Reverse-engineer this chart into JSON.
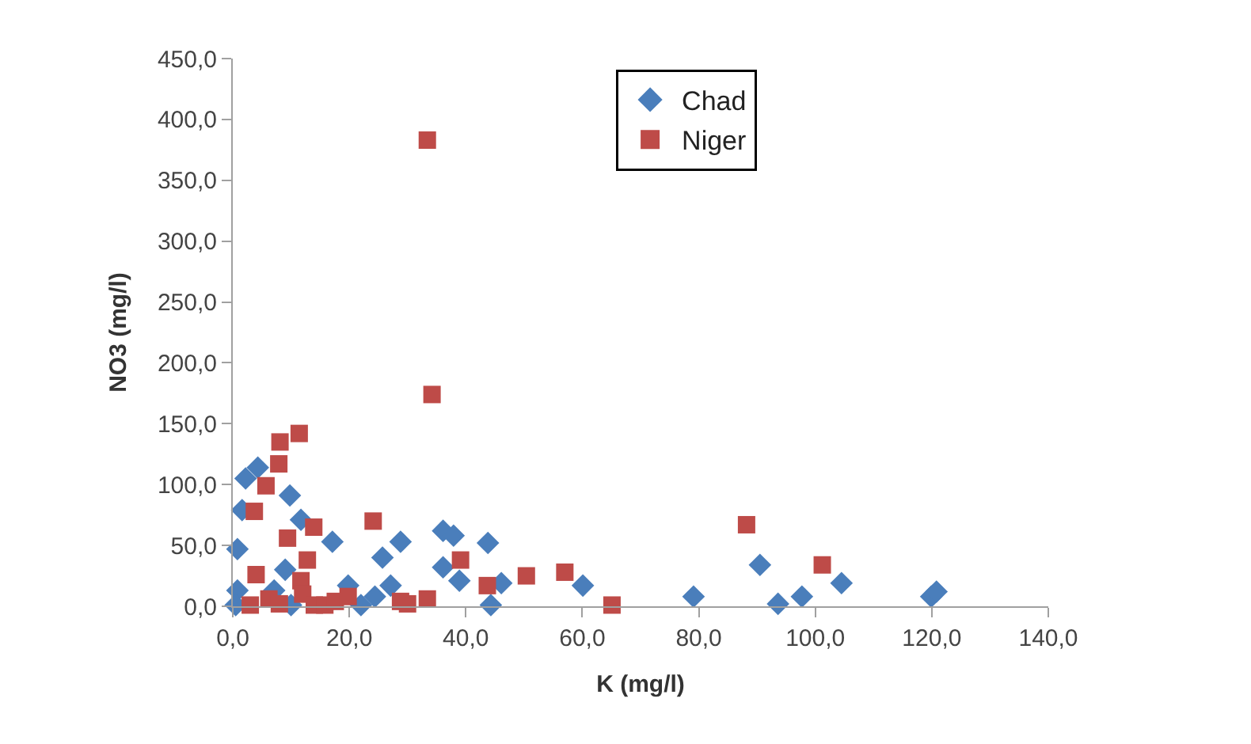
{
  "chart_data": {
    "type": "scatter",
    "xlabel": "K (mg/l)",
    "ylabel": "NO3 (mg/l)",
    "xlim": [
      0,
      140
    ],
    "xticks": [
      {
        "value": 0,
        "label": "0,0"
      },
      {
        "value": 20,
        "label": "20,0"
      },
      {
        "value": 40,
        "label": "40,0"
      },
      {
        "value": 60,
        "label": "60,0"
      },
      {
        "value": 80,
        "label": "80,0"
      },
      {
        "value": 100,
        "label": "100,0"
      },
      {
        "value": 120,
        "label": "120,0"
      },
      {
        "value": 140,
        "label": "140,0"
      }
    ],
    "ylim": [
      0,
      450
    ],
    "yticks": [
      {
        "value": 0,
        "label": "0,0"
      },
      {
        "value": 50,
        "label": "50,0"
      },
      {
        "value": 100,
        "label": "100,0"
      },
      {
        "value": 150,
        "label": "150,0"
      },
      {
        "value": 200,
        "label": "200,0"
      },
      {
        "value": 250,
        "label": "250,0"
      },
      {
        "value": 300,
        "label": "300,0"
      },
      {
        "value": 350,
        "label": "350,0"
      },
      {
        "value": 400,
        "label": "400,0"
      },
      {
        "value": 450,
        "label": "450,0"
      }
    ],
    "legend": "top",
    "series": [
      {
        "name": "Chad",
        "color": "#4a7ebb",
        "marker": "diamond",
        "x": [
          2.2,
          4.3,
          9.8,
          1.6,
          11.7,
          17.1,
          0.8,
          28.8,
          25.7,
          36.1,
          37.9,
          43.8,
          36.1,
          38.9,
          44.3,
          9,
          0.8,
          0.5,
          7.1,
          19.8,
          24.4,
          27.1,
          22,
          10,
          46.1,
          60.1,
          79.1,
          90.5,
          93.6,
          97.7,
          104.5,
          119.9,
          120.8
        ],
        "values": [
          105,
          114,
          91,
          79,
          71,
          53,
          47,
          53,
          40,
          62,
          58,
          52,
          32,
          21,
          1,
          30,
          13,
          1,
          13,
          17,
          8,
          17,
          1,
          1,
          19,
          17,
          8,
          34,
          2,
          8,
          19,
          8,
          12
        ]
      },
      {
        "name": "Niger",
        "color": "#be4b48",
        "marker": "square",
        "x": [
          33.4,
          34.2,
          11.4,
          8.1,
          7.9,
          5.7,
          3.7,
          13.9,
          24.1,
          9.4,
          12.8,
          39.1,
          43.7,
          4,
          3,
          6.2,
          8,
          11.7,
          12,
          14,
          15.8,
          17.6,
          19.8,
          28.8,
          30,
          33.4,
          50.4,
          57,
          65.1,
          88.2,
          101.2
        ],
        "values": [
          383,
          174,
          142,
          135,
          117,
          99,
          78,
          65,
          70,
          56,
          38,
          38,
          17,
          26,
          1,
          6,
          2,
          21,
          10,
          1,
          1,
          4,
          8,
          4,
          2,
          6,
          25,
          28,
          1,
          67,
          34
        ]
      }
    ]
  }
}
